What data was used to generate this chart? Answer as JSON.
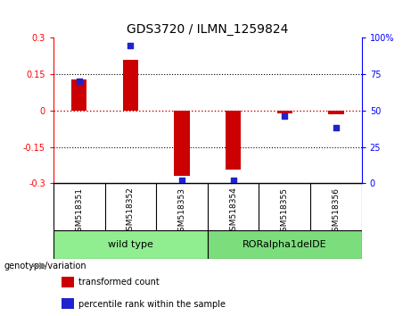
{
  "title": "GDS3720 / ILMN_1259824",
  "samples": [
    "GSM518351",
    "GSM518352",
    "GSM518353",
    "GSM518354",
    "GSM518355",
    "GSM518356"
  ],
  "transformed_count": [
    0.13,
    0.21,
    -0.27,
    -0.245,
    -0.01,
    -0.015
  ],
  "percentile_rank": [
    70,
    95,
    2,
    2,
    46,
    38
  ],
  "ylim_left": [
    -0.3,
    0.3
  ],
  "ylim_right": [
    0,
    100
  ],
  "yticks_left": [
    -0.3,
    -0.15,
    0,
    0.15,
    0.3
  ],
  "yticks_right": [
    0,
    25,
    50,
    75,
    100
  ],
  "ytick_right_labels": [
    "0",
    "25",
    "50",
    "75",
    "100%"
  ],
  "hlines": [
    0.15,
    -0.15
  ],
  "bar_color": "#cc0000",
  "scatter_color": "#2222cc",
  "zero_line_color": "#cc0000",
  "genotype_groups": [
    {
      "label": "wild type",
      "start": 0,
      "end": 2,
      "color": "#90ee90"
    },
    {
      "label": "RORalpha1delDE",
      "start": 3,
      "end": 5,
      "color": "#7cdd7c"
    }
  ],
  "legend_items": [
    {
      "label": "transformed count",
      "color": "#cc0000"
    },
    {
      "label": "percentile rank within the sample",
      "color": "#2222cc"
    }
  ],
  "xlabel_group": "genotype/variation",
  "background_plot": "#ffffff",
  "background_xtick": "#c8c8c8",
  "bar_width": 0.3
}
